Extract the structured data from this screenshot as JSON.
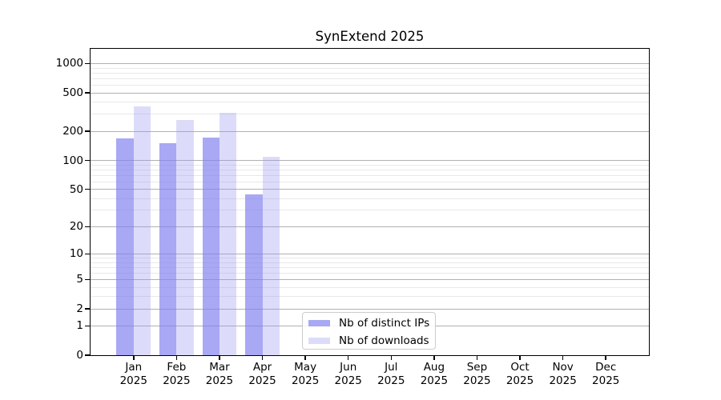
{
  "title": "SynExtend 2025",
  "colors": {
    "background": "#ffffff",
    "axis": "#000000",
    "major_grid": "#b0b0b0",
    "minor_grid": "#e8e8e8",
    "legend_border": "#cccccc",
    "bar_distinct_ips": "rgba(131,131,240,0.7)",
    "bar_downloads": "rgba(155,155,240,0.35)"
  },
  "chart_data": {
    "type": "bar",
    "title": "SynExtend 2025",
    "xlabel": "",
    "ylabel": "",
    "yscale": "log10(value+1)",
    "ylim": [
      0,
      1420
    ],
    "yticks": [
      0,
      1,
      2,
      5,
      10,
      20,
      50,
      100,
      200,
      500,
      1000
    ],
    "minor_gridlines": [
      3,
      4,
      6,
      7,
      8,
      9,
      30,
      40,
      60,
      70,
      80,
      90,
      300,
      400,
      600,
      700,
      800,
      900
    ],
    "grid": "horizontal major and minor",
    "legend_location": "inside plot, lower center-left",
    "categories": [
      "Jan 2025",
      "Feb 2025",
      "Mar 2025",
      "Apr 2025",
      "May 2025",
      "Jun 2025",
      "Jul 2025",
      "Aug 2025",
      "Sep 2025",
      "Oct 2025",
      "Nov 2025",
      "Dec 2025"
    ],
    "series": [
      {
        "name": "Nb of distinct IPs",
        "color": "rgba(131,131,240,0.7)",
        "values": [
          168,
          150,
          173,
          44,
          0,
          0,
          0,
          0,
          0,
          0,
          0,
          0
        ]
      },
      {
        "name": "Nb of downloads",
        "color": "rgba(155,155,240,0.35)",
        "values": [
          360,
          260,
          310,
          108,
          0,
          0,
          0,
          0,
          0,
          0,
          0,
          0
        ]
      }
    ]
  }
}
